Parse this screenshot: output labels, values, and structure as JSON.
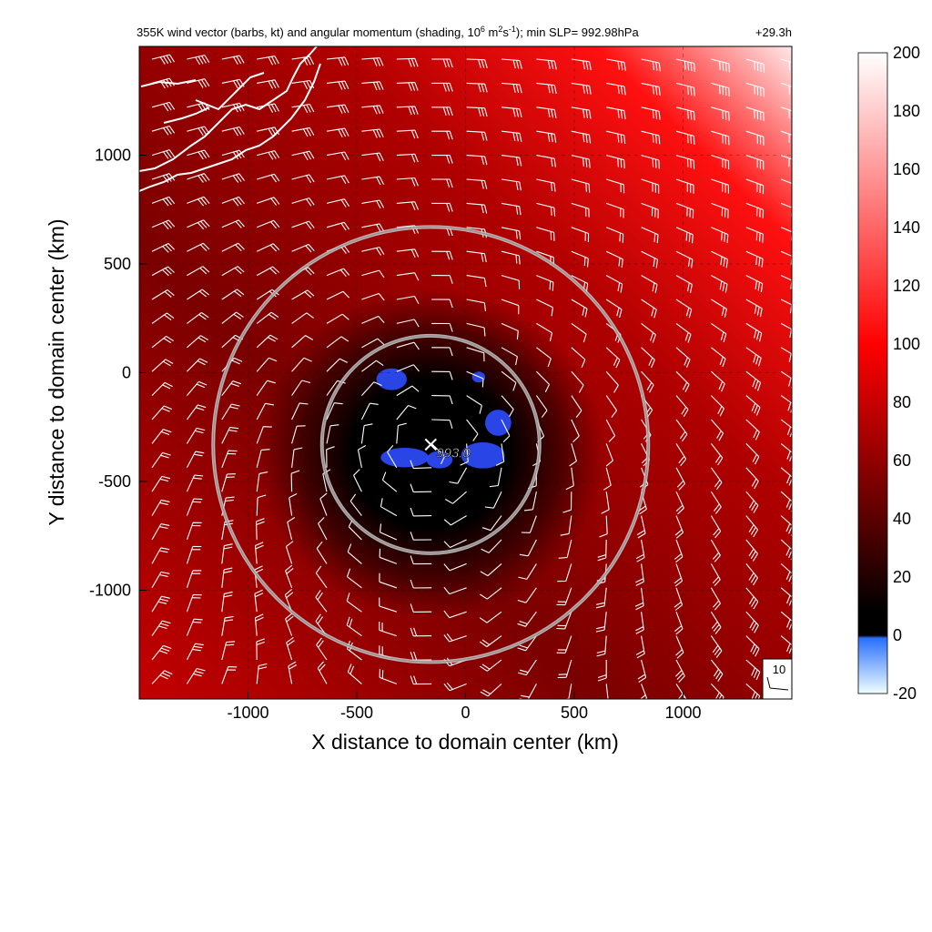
{
  "chart_data": {
    "type": "heatmap",
    "title": {
      "main": "355K wind vector (barbs, kt) and angular momentum (shading, 10",
      "exp1": "6",
      "mid1": " m",
      "exp2": "2",
      "mid2": "s",
      "exp3": "-1",
      "tail": "); min SLP= 992.98hPa",
      "time": "+29.3h"
    },
    "xlabel": "X distance to domain center (km)",
    "ylabel": "Y distance to domain center (km)",
    "xlim": [
      -1500,
      1500
    ],
    "ylim": [
      -1500,
      1500
    ],
    "x_ticks": [
      -1000,
      -500,
      0,
      500,
      1000
    ],
    "y_ticks": [
      1000,
      500,
      0,
      -500,
      -1000
    ],
    "grid": "dashed",
    "colorbar": {
      "ticks": [
        200,
        180,
        160,
        140,
        120,
        100,
        80,
        60,
        40,
        20,
        0,
        -20
      ],
      "range": [
        -20,
        200
      ],
      "stops": [
        {
          "value": 200,
          "color": "#ffffff"
        },
        {
          "value": 100,
          "color": "#ff0000"
        },
        {
          "value": 40,
          "color": "#5a0000"
        },
        {
          "value": 8,
          "color": "#000000"
        },
        {
          "value": 0,
          "color": "#000000"
        },
        {
          "value": -1,
          "color": "#2a6fff"
        },
        {
          "value": -20,
          "color": "#f0ffff"
        }
      ]
    },
    "center_marker": {
      "x": -160,
      "y": -330,
      "label": "993.0"
    },
    "rings": [
      {
        "x": -160,
        "y": -330,
        "radius": 500
      },
      {
        "x": -160,
        "y": -330,
        "radius": 1000
      }
    ],
    "reference_barb": {
      "label": "10"
    },
    "negative_regions": [
      {
        "x": -340,
        "y": -30,
        "rx": 70,
        "ry": 50
      },
      {
        "x": -280,
        "y": -390,
        "rx": 110,
        "ry": 45
      },
      {
        "x": -120,
        "y": -400,
        "rx": 60,
        "ry": 40
      },
      {
        "x": 80,
        "y": -380,
        "rx": 100,
        "ry": 60
      },
      {
        "x": 150,
        "y": -230,
        "rx": 60,
        "ry": 60
      },
      {
        "x": 60,
        "y": -20,
        "rx": 30,
        "ry": 25
      }
    ]
  }
}
